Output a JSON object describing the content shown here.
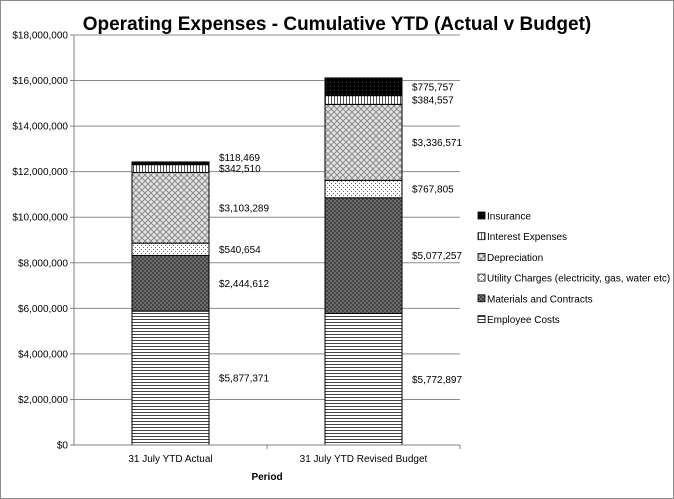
{
  "chart_data": {
    "type": "bar",
    "stacked": true,
    "title": "Operating Expenses - Cumulative YTD (Actual v Budget)",
    "xlabel": "Period",
    "ylabel": "",
    "ylim": [
      0,
      18000000
    ],
    "yticks": [
      0,
      2000000,
      4000000,
      6000000,
      8000000,
      10000000,
      12000000,
      14000000,
      16000000,
      18000000
    ],
    "ytick_labels": [
      "$0",
      "$2,000,000",
      "$4,000,000",
      "$6,000,000",
      "$8,000,000",
      "$10,000,000",
      "$12,000,000",
      "$14,000,000",
      "$16,000,000",
      "$18,000,000"
    ],
    "categories": [
      "31 July YTD Actual",
      "31 July YTD Revised Budget"
    ],
    "series": [
      {
        "name": "Employee Costs",
        "values": [
          5877371,
          5772897
        ],
        "labels": [
          "$5,877,371",
          "$5,772,897"
        ],
        "pattern": "hlines"
      },
      {
        "name": "Materials and Contracts",
        "values": [
          2444612,
          5077257
        ],
        "labels": [
          "$2,444,612",
          "$5,077,257"
        ],
        "pattern": "crossdark"
      },
      {
        "name": "Utility Charges (electricity, gas, water etc)",
        "values": [
          540654,
          767805
        ],
        "labels": [
          "$540,654",
          "$767,805"
        ],
        "pattern": "dots"
      },
      {
        "name": "Depreciation",
        "values": [
          3103289,
          3336571
        ],
        "labels": [
          "$3,103,289",
          "$3,336,571"
        ],
        "pattern": "diamond"
      },
      {
        "name": "Interest Expenses",
        "values": [
          342510,
          384557
        ],
        "labels": [
          "$342,510",
          "$384,557"
        ],
        "pattern": "vlines"
      },
      {
        "name": "Insurance",
        "values": [
          118469,
          775757
        ],
        "labels": [
          "$118,469",
          "$775,757"
        ],
        "pattern": "black"
      }
    ],
    "legend_position": "right",
    "grid": true
  }
}
